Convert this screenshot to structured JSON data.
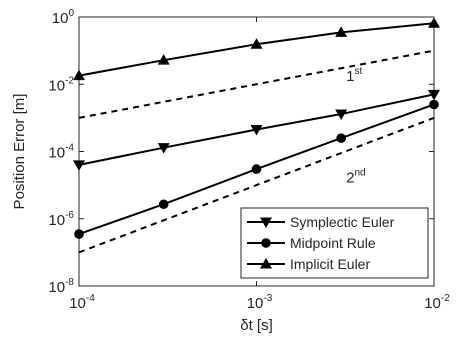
{
  "chart_data": {
    "type": "line",
    "x_scale": "log",
    "y_scale": "log",
    "xlim": [
      0.0001,
      0.01
    ],
    "ylim": [
      1e-08,
      1
    ],
    "xlabel": {
      "prefix": "δ",
      "rest": "t [s]"
    },
    "ylabel": "Position Error [m]",
    "x_ticks": [
      {
        "value": 0.0001,
        "base": "10",
        "exp": "-4"
      },
      {
        "value": 0.001,
        "base": "10",
        "exp": "-3"
      },
      {
        "value": 0.01,
        "base": "10",
        "exp": "-2"
      }
    ],
    "y_ticks": [
      {
        "value": 1e-08,
        "base": "10",
        "exp": "-8"
      },
      {
        "value": 1e-06,
        "base": "10",
        "exp": "-6"
      },
      {
        "value": 0.0001,
        "base": "10",
        "exp": "-4"
      },
      {
        "value": 0.01,
        "base": "10",
        "exp": "-2"
      },
      {
        "value": 1,
        "base": "10",
        "exp": "0"
      }
    ],
    "grid": false,
    "legend_position": "bottom-right",
    "series": [
      {
        "name": "Symplectic Euler",
        "marker": "triangle-down",
        "color": "#000000",
        "x": [
          0.0001,
          0.0003,
          0.001,
          0.003,
          0.01
        ],
        "y": [
          4e-05,
          0.00013,
          0.00045,
          0.0013,
          0.005
        ]
      },
      {
        "name": "Midpoint Rule",
        "marker": "circle",
        "color": "#000000",
        "x": [
          0.0001,
          0.0003,
          0.001,
          0.003,
          0.01
        ],
        "y": [
          3.5e-07,
          2.7e-06,
          3e-05,
          0.00025,
          0.0025
        ]
      },
      {
        "name": "Implicit Euler",
        "marker": "triangle-up",
        "color": "#000000",
        "x": [
          0.0001,
          0.0003,
          0.001,
          0.003,
          0.01
        ],
        "y": [
          0.018,
          0.052,
          0.155,
          0.35,
          0.65
        ]
      }
    ],
    "reference_lines": [
      {
        "order": "1",
        "suffix": "st",
        "x": [
          0.0001,
          0.01
        ],
        "y": [
          0.001,
          0.1
        ]
      },
      {
        "order": "2",
        "suffix": "nd",
        "x": [
          0.0001,
          0.01
        ],
        "y": [
          1e-07,
          0.001
        ]
      }
    ]
  }
}
